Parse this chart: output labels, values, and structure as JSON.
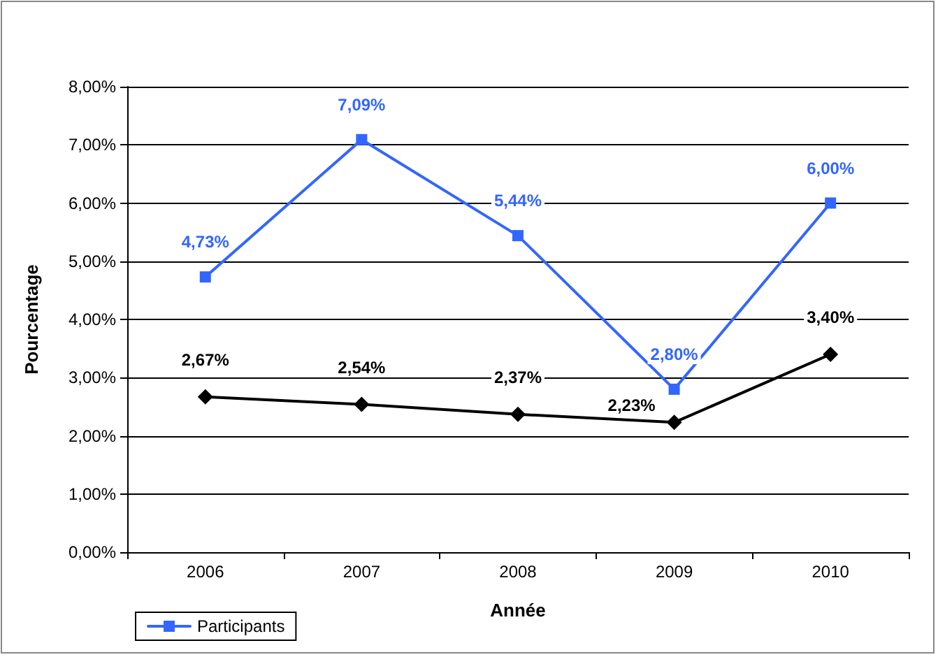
{
  "chart_data": {
    "type": "line",
    "xlabel": "Année",
    "ylabel": "Pourcentage",
    "categories": [
      "2006",
      "2007",
      "2008",
      "2009",
      "2010"
    ],
    "series": [
      {
        "color": "#000000",
        "marker": "diamond",
        "values": [
          2.67,
          2.54,
          2.37,
          2.23,
          3.4
        ],
        "value_labels": [
          "2,67%",
          "2,54%",
          "2,37%",
          "2,23%",
          "3,40%"
        ]
      },
      {
        "name": "Participants",
        "color": "#3366ff",
        "marker": "square",
        "values": [
          4.73,
          7.09,
          5.44,
          2.8,
          6.0
        ],
        "value_labels": [
          "4,73%",
          "7,09%",
          "5,44%",
          "2,80%",
          "6,00%"
        ]
      }
    ],
    "ylim": [
      0,
      8
    ],
    "yticks": [
      {
        "value": 0,
        "label": "0,00%"
      },
      {
        "value": 1,
        "label": "1,00%"
      },
      {
        "value": 2,
        "label": "2,00%"
      },
      {
        "value": 3,
        "label": "3,00%"
      },
      {
        "value": 4,
        "label": "4,00%"
      },
      {
        "value": 5,
        "label": "5,00%"
      },
      {
        "value": 6,
        "label": "6,00%"
      },
      {
        "value": 7,
        "label": "7,00%"
      },
      {
        "value": 8,
        "label": "8,00%"
      }
    ],
    "grid": "y",
    "legend": "bottom left",
    "line_style": "solid"
  }
}
